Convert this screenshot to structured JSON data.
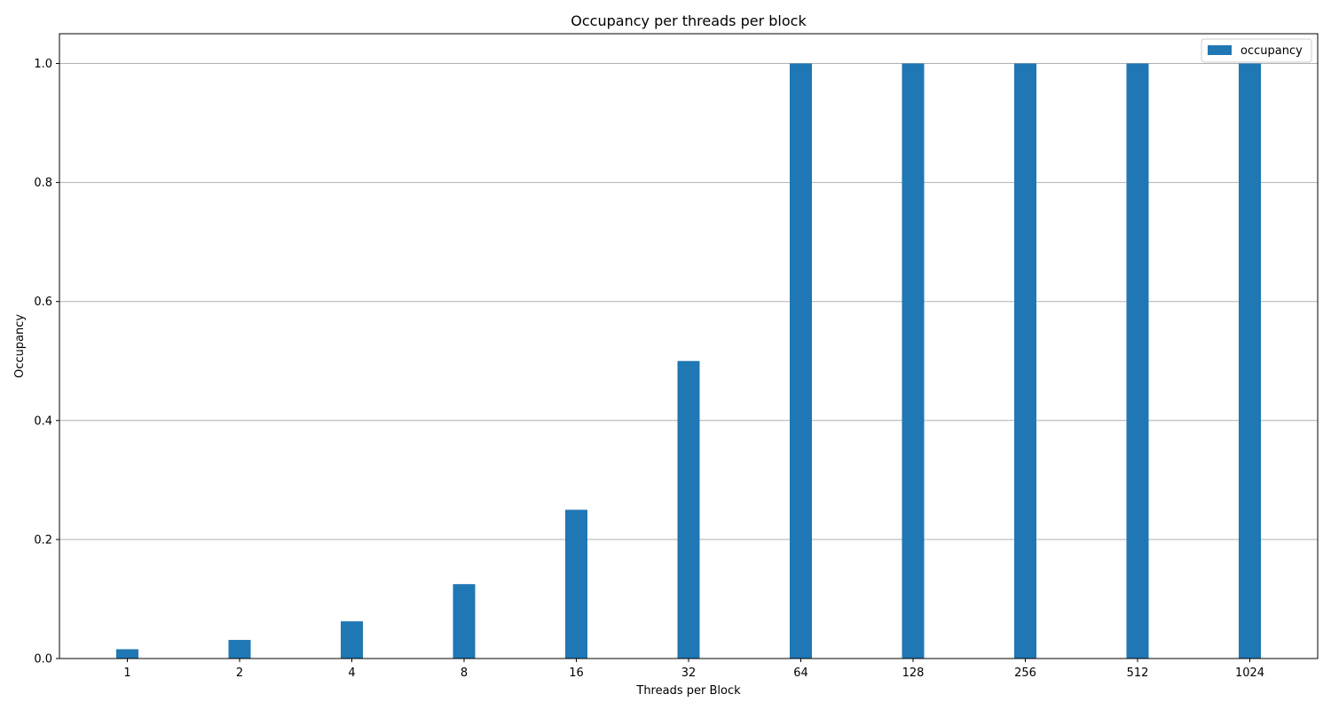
{
  "chart_data": {
    "type": "bar",
    "title": "Occupancy per threads per block",
    "xlabel": "Threads per Block",
    "ylabel": "Occupancy",
    "categories": [
      "1",
      "2",
      "4",
      "8",
      "16",
      "32",
      "64",
      "128",
      "256",
      "512",
      "1024"
    ],
    "series": [
      {
        "name": "occupancy",
        "values": [
          0.015625,
          0.03125,
          0.0625,
          0.125,
          0.25,
          0.5,
          1.0,
          1.0,
          1.0,
          1.0,
          1.0
        ],
        "color": "#1f77b4"
      }
    ],
    "ylim": [
      0,
      1.05
    ],
    "yticks": [
      "0.0",
      "0.2",
      "0.4",
      "0.6",
      "0.8",
      "1.0"
    ],
    "grid": "y-axis",
    "legend_position": "top-right"
  }
}
